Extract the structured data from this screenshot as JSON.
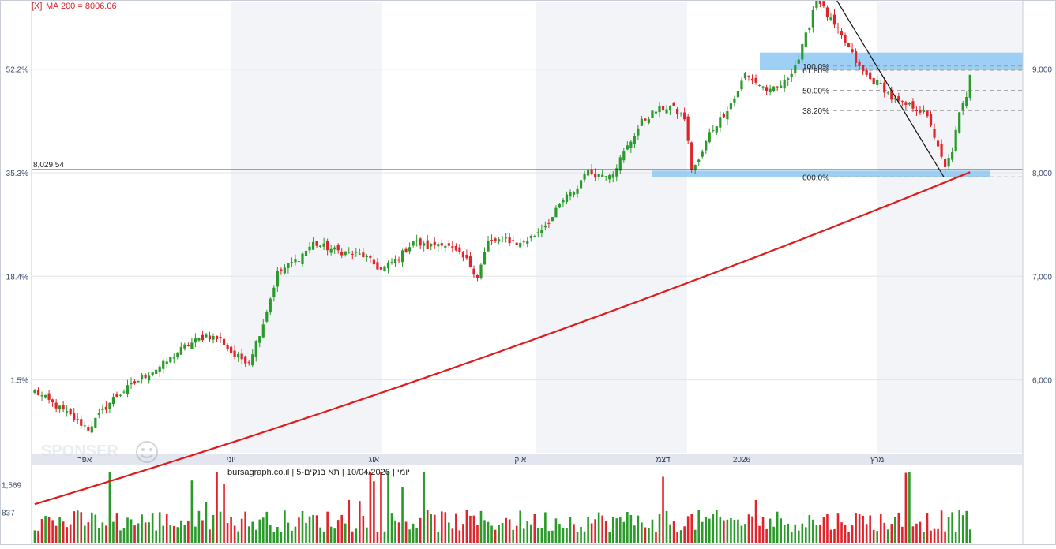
{
  "header": {
    "close_marker": "[X]",
    "ma_label": "MA 200 = 8006.06"
  },
  "footer_caption": "יומי | 10/04/2026 | תא בנקים-5 | bursagraph.co.il",
  "watermark_text": "SPONSER",
  "colors": {
    "up": "#2a9a2a",
    "down": "#e0242c",
    "ma": "#e01b1b",
    "zone": "#8cc8f2",
    "fib": "#9a9a9a",
    "band": "#f3f4f7",
    "axis_text": "#3a4a6a"
  },
  "chart_data": {
    "type": "candlestick",
    "price_axis": {
      "ticks": [
        6000,
        7000,
        8000,
        9000
      ],
      "tick_labels": [
        "6,000",
        "7,000",
        "8,000",
        "9,000"
      ],
      "range": [
        5280,
        9060
      ]
    },
    "percent_axis": {
      "ticks": [
        6000,
        7000,
        8000,
        9000
      ],
      "tick_labels": [
        "1.5%",
        "18.4%",
        "35.3%",
        "52.2%"
      ]
    },
    "x_axis": {
      "labels": [
        "אפר",
        "יוני",
        "אוג",
        "אוק",
        "דצמ",
        "2026",
        "מרץ"
      ],
      "label_index": [
        14,
        55,
        95,
        136,
        176,
        198,
        236
      ]
    },
    "support_line": {
      "value": 8029.54,
      "label": "8,029.54"
    },
    "moving_average": {
      "name": "MA 200",
      "last_value": 8006.06,
      "start_value": 4800
    },
    "fibonacci": {
      "levels": [
        {
          "label": "100.0%",
          "value": 9030
        },
        {
          "label": "61.80%",
          "value": 8990
        },
        {
          "label": "50.00%",
          "value": 8795
        },
        {
          "label": "38.20%",
          "value": 8600
        },
        {
          "label": "000.0%",
          "value": 7960
        }
      ]
    },
    "zones": [
      {
        "from": 8990,
        "to": 9160
      },
      {
        "from": 7960,
        "to": 8020
      }
    ],
    "volume_axis": {
      "ticks": [
        837,
        1569
      ],
      "tick_labels": [
        "837",
        "1,569"
      ],
      "max": 1900
    },
    "anchors": [
      [
        0,
        5890
      ],
      [
        8,
        5700
      ],
      [
        15,
        5530
      ],
      [
        22,
        5820
      ],
      [
        30,
        6020
      ],
      [
        36,
        6150
      ],
      [
        42,
        6320
      ],
      [
        48,
        6430
      ],
      [
        52,
        6390
      ],
      [
        56,
        6230
      ],
      [
        60,
        6180
      ],
      [
        64,
        6550
      ],
      [
        68,
        7030
      ],
      [
        74,
        7180
      ],
      [
        78,
        7320
      ],
      [
        84,
        7250
      ],
      [
        92,
        7200
      ],
      [
        97,
        7060
      ],
      [
        102,
        7180
      ],
      [
        106,
        7340
      ],
      [
        110,
        7280
      ],
      [
        114,
        7330
      ],
      [
        118,
        7230
      ],
      [
        121,
        7150
      ],
      [
        124,
        7000
      ],
      [
        127,
        7330
      ],
      [
        132,
        7360
      ],
      [
        136,
        7310
      ],
      [
        140,
        7400
      ],
      [
        145,
        7570
      ],
      [
        148,
        7740
      ],
      [
        152,
        7850
      ],
      [
        154,
        8010
      ],
      [
        158,
        7980
      ],
      [
        162,
        8010
      ],
      [
        166,
        8250
      ],
      [
        170,
        8490
      ],
      [
        174,
        8600
      ],
      [
        178,
        8640
      ],
      [
        182,
        8530
      ],
      [
        184,
        8040
      ],
      [
        186,
        8110
      ],
      [
        189,
        8380
      ],
      [
        192,
        8520
      ],
      [
        196,
        8720
      ],
      [
        199,
        8950
      ],
      [
        203,
        8850
      ],
      [
        206,
        8780
      ],
      [
        210,
        8870
      ],
      [
        214,
        9100
      ],
      [
        217,
        9430
      ],
      [
        219,
        9720
      ],
      [
        222,
        9520
      ],
      [
        225,
        9360
      ],
      [
        228,
        9200
      ],
      [
        231,
        9010
      ],
      [
        234,
        8900
      ],
      [
        237,
        8850
      ],
      [
        240,
        8720
      ],
      [
        243,
        8660
      ],
      [
        246,
        8640
      ],
      [
        249,
        8580
      ],
      [
        251,
        8470
      ],
      [
        253,
        8230
      ],
      [
        255,
        8040
      ],
      [
        257,
        8220
      ],
      [
        259,
        8560
      ],
      [
        261,
        8750
      ],
      [
        262,
        8970
      ]
    ]
  }
}
